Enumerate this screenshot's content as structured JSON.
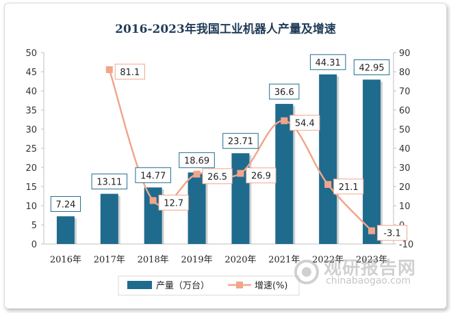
{
  "title": "2016-2023年我国工业机器人产量及增速",
  "watermark": {
    "cn": "观研报告网",
    "en": "chinabaogao.com"
  },
  "colors": {
    "bar": "#1f6b8e",
    "line": "#f2a58a",
    "marker": "#f2a58a",
    "title": "#1f3b57"
  },
  "chart_data": {
    "type": "bar",
    "categories": [
      "2016年",
      "2017年",
      "2018年",
      "2019年",
      "2020年",
      "2021年",
      "2022年",
      "2023年"
    ],
    "series": [
      {
        "name": "产量（万台）",
        "type": "bar",
        "axis": "left",
        "values": [
          7.24,
          13.11,
          14.77,
          18.69,
          23.71,
          36.6,
          44.31,
          42.95
        ],
        "labels": [
          "7.24",
          "13.11",
          "14.77",
          "18.69",
          "23.71",
          "36.6",
          "44.31",
          "42.95"
        ]
      },
      {
        "name": "增速(%)",
        "type": "line",
        "axis": "right",
        "values": [
          null,
          81.1,
          12.7,
          26.5,
          26.9,
          54.4,
          21.1,
          -3.1
        ],
        "labels": [
          "",
          "81.1",
          "12.7",
          "26.5",
          "26.9",
          "54.4",
          "21.1",
          "-3.1"
        ]
      }
    ],
    "ylim_left": [
      0,
      50
    ],
    "yticks_left": [
      "0",
      "5",
      "10",
      "15",
      "20",
      "25",
      "30",
      "35",
      "40",
      "45",
      "50"
    ],
    "ylim_right": [
      -10,
      90
    ],
    "yticks_right": [
      "-10",
      "0",
      "10",
      "20",
      "30",
      "40",
      "50",
      "60",
      "70",
      "80",
      "90"
    ],
    "legend": "bottom",
    "grid": false
  }
}
